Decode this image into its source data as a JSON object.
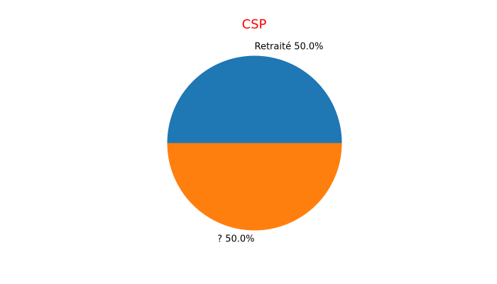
{
  "chart_data": {
    "type": "pie",
    "title": "CSP",
    "title_color": "#ff0000",
    "slices": [
      {
        "label": "Retraité",
        "value": 50.0,
        "pct_label": "50.0%",
        "color": "#1f77b4"
      },
      {
        "label": "?",
        "value": 50.0,
        "pct_label": "50.0%",
        "color": "#ff7f0e"
      }
    ],
    "start_angle_deg": 0,
    "direction": "counterclockwise",
    "legend": "none"
  }
}
